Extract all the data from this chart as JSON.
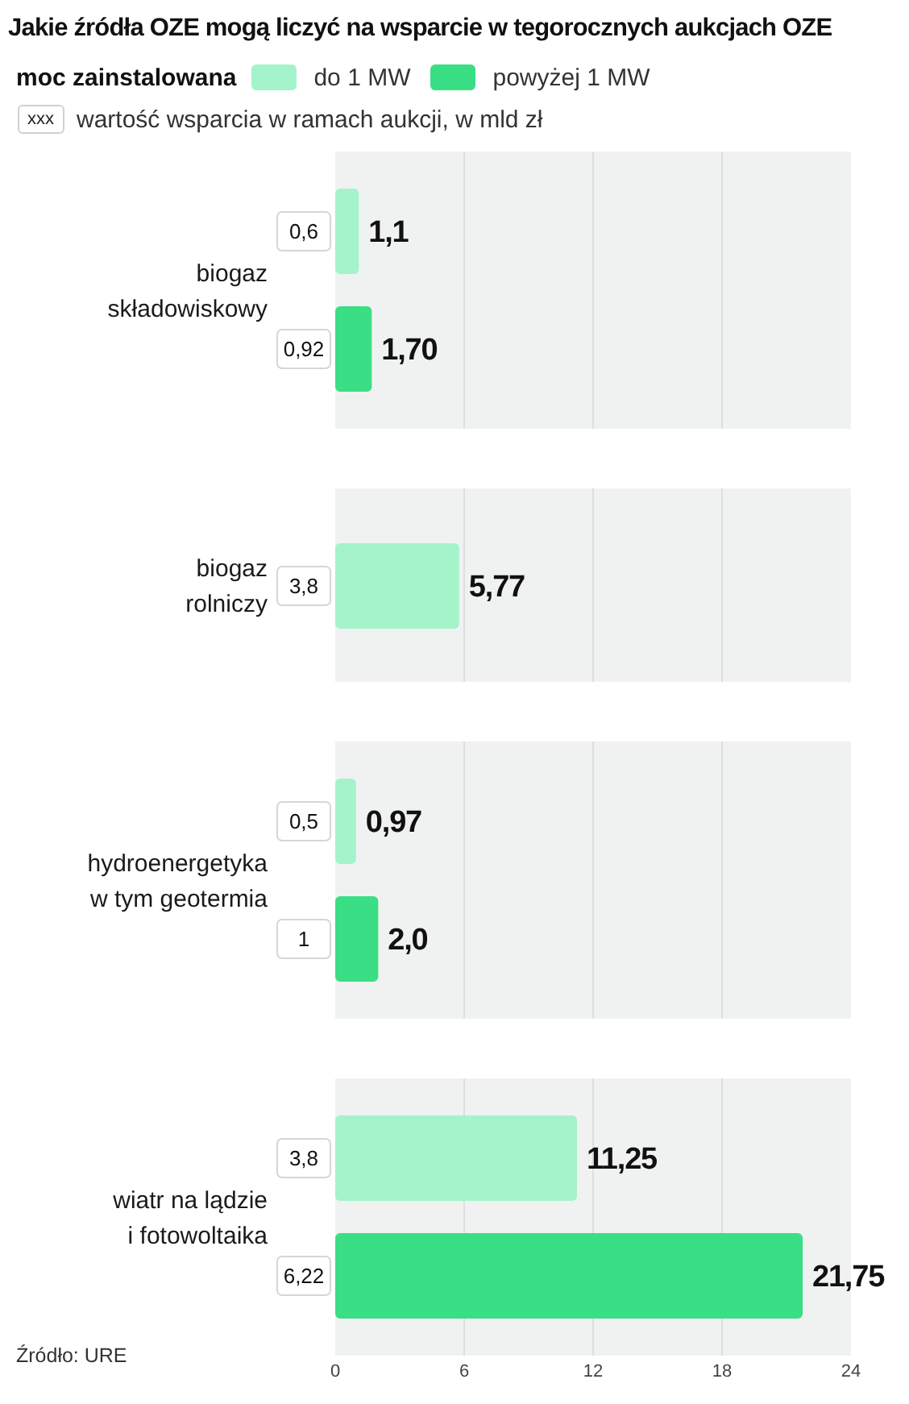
{
  "chart_data": {
    "type": "bar",
    "orientation": "horizontal",
    "title": "Jakie źródła OZE mogą liczyć na wsparcie w tegorocznych aukcjach OZE",
    "legend_title": "moc zainstalowana",
    "categories": [
      "biogaz\nskładowiskowy",
      "biogaz\nrolniczy",
      "hydroenergetyka\nw tym geotermia",
      "wiatr na lądzie\ni fotowoltaika"
    ],
    "series": [
      {
        "name": "do 1 MW",
        "color": "#a5f3cb",
        "values": [
          1.1,
          5.77,
          0.97,
          11.25
        ],
        "value_labels": [
          "1,1",
          "5,77",
          "0,97",
          "11,25"
        ]
      },
      {
        "name": "powyżej 1 MW",
        "color": "#3ade84",
        "values": [
          1.7,
          null,
          2.0,
          21.75
        ],
        "value_labels": [
          "1,70",
          null,
          "2,0",
          "21,75"
        ]
      }
    ],
    "xlim": [
      0,
      24
    ],
    "xticks": [
      0,
      6,
      12,
      18,
      24
    ],
    "grid": "x",
    "legend": "top left",
    "bands": [
      {
        "axis": "y",
        "from": "biogaz\nskładowiskowy",
        "to": "biogaz\nskładowiskowy",
        "color": "#f0f2f2"
      },
      {
        "axis": "y",
        "from": "biogaz\nrolniczy",
        "to": "biogaz\nrolniczy",
        "color": "#f0f2f2"
      },
      {
        "axis": "y",
        "from": "hydroenergetyka\nw tym geotermia",
        "to": "hydroenergetyka\nw tym geotermia",
        "color": "#f0f2f2"
      },
      {
        "axis": "y",
        "from": "wiatr na lądzie\ni fotowoltaika",
        "to": "wiatr na lądzie\ni fotowoltaika",
        "color": "#f0f2f2"
      }
    ],
    "annotations": [
      "0,6",
      "0,92",
      "3,8",
      "0,5",
      "1",
      "3,8",
      "6,22",
      "xxx",
      "wartość wsparcia w ramach aukcji, w mld zł",
      "Źródło: URE"
    ]
  }
}
